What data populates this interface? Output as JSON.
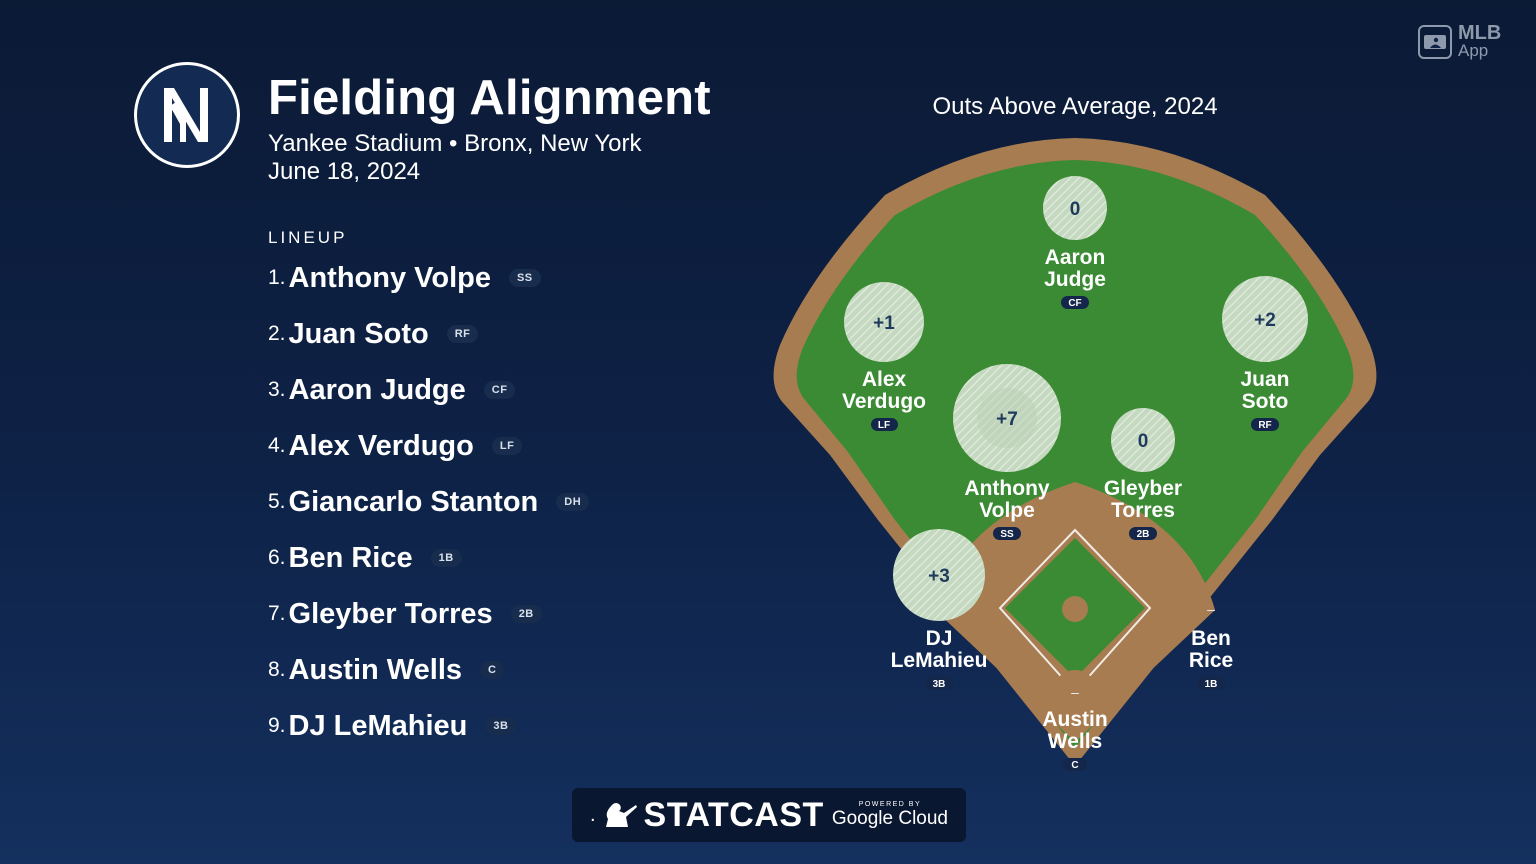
{
  "header": {
    "title": "Fielding Alignment",
    "subtitle": "Yankee Stadium • Bronx, New York",
    "date": "June 18, 2024"
  },
  "lineup": {
    "label": "LINEUP",
    "items": [
      {
        "num": "1.",
        "name": "Anthony Volpe",
        "pos": "SS"
      },
      {
        "num": "2.",
        "name": "Juan Soto",
        "pos": "RF"
      },
      {
        "num": "3.",
        "name": "Aaron Judge",
        "pos": "CF"
      },
      {
        "num": "4.",
        "name": "Alex Verdugo",
        "pos": "LF"
      },
      {
        "num": "5.",
        "name": "Giancarlo Stanton",
        "pos": "DH"
      },
      {
        "num": "6.",
        "name": "Ben Rice",
        "pos": "1B"
      },
      {
        "num": "7.",
        "name": "Gleyber Torres",
        "pos": "2B"
      },
      {
        "num": "8.",
        "name": "Austin Wells",
        "pos": "C"
      },
      {
        "num": "9.",
        "name": "DJ LeMahieu",
        "pos": "3B"
      }
    ]
  },
  "field": {
    "title": "Outs Above Average, 2024",
    "players": [
      {
        "id": "judge",
        "first": "Aaron",
        "last": "Judge",
        "pos": "CF",
        "oaa": "0"
      },
      {
        "id": "verdugo",
        "first": "Alex",
        "last": "Verdugo",
        "pos": "LF",
        "oaa": "+1"
      },
      {
        "id": "soto",
        "first": "Juan",
        "last": "Soto",
        "pos": "RF",
        "oaa": "+2"
      },
      {
        "id": "volpe",
        "first": "Anthony",
        "last": "Volpe",
        "pos": "SS",
        "oaa": "+7"
      },
      {
        "id": "torres",
        "first": "Gleyber",
        "last": "Torres",
        "pos": "2B",
        "oaa": "0"
      },
      {
        "id": "lemahieu",
        "first": "DJ",
        "last": "LeMahieu",
        "pos": "3B",
        "oaa": "+3"
      },
      {
        "id": "rice",
        "first": "Ben",
        "last": "Rice",
        "pos": "1B",
        "oaa": "–"
      },
      {
        "id": "wells",
        "first": "Austin",
        "last": "Wells",
        "pos": "C",
        "oaa": "–"
      }
    ]
  },
  "branding": {
    "mlb_line1": "MLB",
    "mlb_line2": "App",
    "statcast": "STATCAST",
    "powered_by": "POWERED BY",
    "google_cloud": "Google Cloud"
  },
  "colors": {
    "background": "#0e2247",
    "grass": "#3b8a34",
    "dirt": "#a77c50"
  }
}
